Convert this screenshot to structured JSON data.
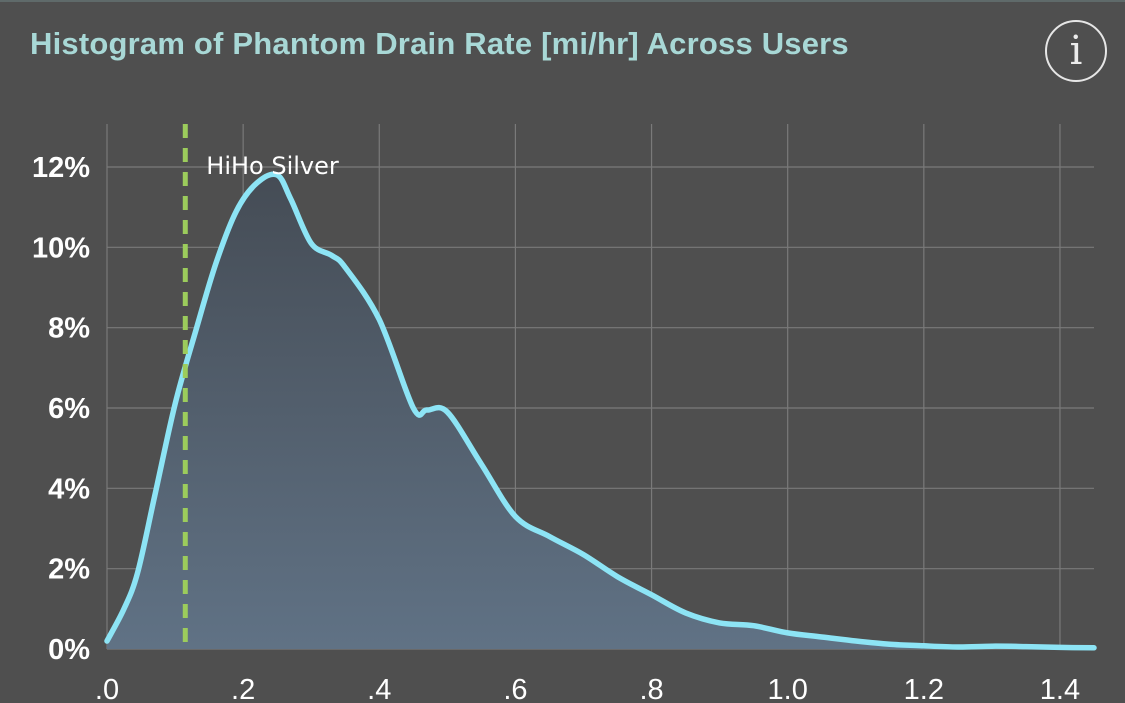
{
  "header": {
    "title": "Histogram of Phantom Drain Rate [mi/hr] Across Users",
    "info_icon_glyph": "i"
  },
  "colors": {
    "background": "#4f4f4f",
    "title": "#a8d8d6",
    "curve": "#8de4f5",
    "fill_top": "#454c55",
    "fill_bottom": "#607285",
    "grid": "#7a7a7a",
    "marker": "#9ccc5c"
  },
  "icons": {
    "info": "info-icon"
  },
  "chart_data": {
    "type": "area",
    "title": "Histogram of Phantom Drain Rate [mi/hr] Across Users",
    "xlabel": "",
    "ylabel": "",
    "xlim": [
      0,
      1.45
    ],
    "ylim": [
      0,
      13
    ],
    "x_ticks": [
      0,
      0.2,
      0.4,
      0.6,
      0.8,
      1.0,
      1.2,
      1.4
    ],
    "x_tick_labels": [
      ".0",
      ".2",
      ".4",
      ".6",
      ".8",
      "1.0",
      "1.2",
      "1.4"
    ],
    "y_ticks": [
      0,
      2,
      4,
      6,
      8,
      10,
      12
    ],
    "y_tick_labels": [
      "0%",
      "2%",
      "4%",
      "6%",
      "8%",
      "10%",
      "12%"
    ],
    "grid": true,
    "series": [
      {
        "x": [
          0.0,
          0.025,
          0.045,
          0.07,
          0.1,
          0.13,
          0.16,
          0.19,
          0.22,
          0.25,
          0.27,
          0.3,
          0.33,
          0.35,
          0.4,
          0.45,
          0.47,
          0.5,
          0.55,
          0.6,
          0.65,
          0.7,
          0.75,
          0.8,
          0.85,
          0.9,
          0.95,
          1.0,
          1.05,
          1.1,
          1.15,
          1.2,
          1.25,
          1.3,
          1.35,
          1.4,
          1.45
        ],
        "y": [
          0.2,
          1.0,
          1.9,
          3.8,
          6.1,
          7.9,
          9.6,
          10.9,
          11.6,
          11.8,
          11.2,
          10.1,
          9.8,
          9.5,
          8.2,
          6.0,
          5.95,
          5.9,
          4.6,
          3.3,
          2.8,
          2.35,
          1.8,
          1.35,
          0.9,
          0.65,
          0.58,
          0.4,
          0.3,
          0.2,
          0.12,
          0.08,
          0.05,
          0.07,
          0.06,
          0.04,
          0.03
        ]
      }
    ],
    "annotations": [
      {
        "x": 0.115,
        "label": "HiHo Silver",
        "style": "dashed-vertical-line"
      }
    ]
  }
}
